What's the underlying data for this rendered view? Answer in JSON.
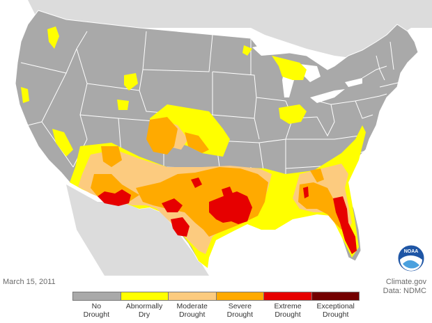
{
  "map": {
    "date": "March 15, 2011",
    "credit_line1": "Climate.gov",
    "credit_line2": "Data: NDMC",
    "logo_text": "NOAA",
    "colors": {
      "land": "#a9a9a9",
      "neighbor_land": "#dcdcdc",
      "water": "#ffffff",
      "borders": "#ffffff"
    }
  },
  "legend": {
    "items": [
      {
        "line1": "No",
        "line2": "Drought",
        "color": "#a9a9a9"
      },
      {
        "line1": "Abnormally",
        "line2": "Dry",
        "color": "#ffff00"
      },
      {
        "line1": "Moderate",
        "line2": "Drought",
        "color": "#fccb7f"
      },
      {
        "line1": "Severe",
        "line2": "Drought",
        "color": "#ffaa00"
      },
      {
        "line1": "Extreme",
        "line2": "Drought",
        "color": "#e60000"
      },
      {
        "line1": "Exceptional",
        "line2": "Drought",
        "color": "#730000"
      }
    ]
  }
}
